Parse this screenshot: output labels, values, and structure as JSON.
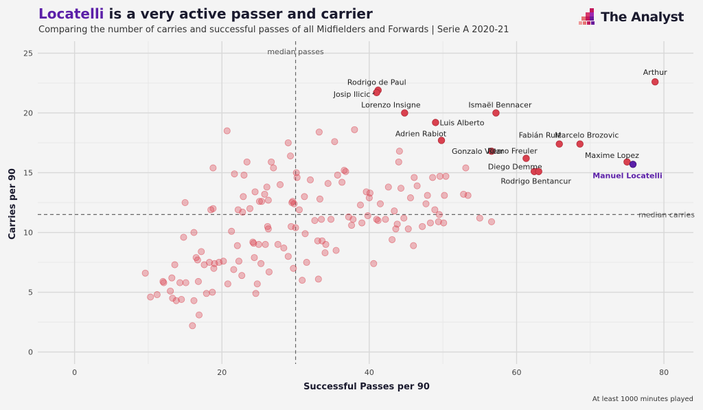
{
  "header": {
    "title_highlight": "Locatelli",
    "title_rest": " is a very active passer and carrier",
    "subtitle": "Comparing the number of carries and successful passes of all Midfielders and Forwards | Serie A 2020-21"
  },
  "brand": {
    "name": "The Analyst"
  },
  "footnote": "At least 1000 minutes played",
  "colors": {
    "points": "#d9414f",
    "highlight": "#5b1fa8",
    "background": "#f4f4f4",
    "grid": "#dcdcdc"
  },
  "chart_data": {
    "type": "scatter",
    "xlabel": "Successful Passes per 90",
    "ylabel": "Carries per 90",
    "xlim": [
      -5,
      84
    ],
    "ylim": [
      -1,
      26
    ],
    "xticks": [
      0,
      20,
      40,
      60,
      80
    ],
    "yticks": [
      0,
      5,
      10,
      15,
      20,
      25
    ],
    "reference_lines": [
      {
        "axis": "x",
        "value": 30,
        "label": "median passes"
      },
      {
        "axis": "y",
        "value": 11.5,
        "label": "median carries"
      }
    ],
    "labeled_points": [
      {
        "name": "Arthur",
        "x": 78.8,
        "y": 22.6
      },
      {
        "name": "Rodrigo de Paul",
        "x": 41.2,
        "y": 21.9
      },
      {
        "name": "Josip Ilicic",
        "x": 41.0,
        "y": 21.7
      },
      {
        "name": "Lorenzo Insigne",
        "x": 44.8,
        "y": 20.0
      },
      {
        "name": "Ismaël Bennacer",
        "x": 57.2,
        "y": 20.0
      },
      {
        "name": "Luis Alberto",
        "x": 49.0,
        "y": 19.2
      },
      {
        "name": "Adrien Rabiot",
        "x": 49.8,
        "y": 17.7
      },
      {
        "name": "Gonzalo Villar",
        "x": 56.6,
        "y": 16.8
      },
      {
        "name": "Fabián Ruiz",
        "x": 65.8,
        "y": 17.4
      },
      {
        "name": "Marcelo Brozovic",
        "x": 68.6,
        "y": 17.4
      },
      {
        "name": "Remo Freuler",
        "x": 61.3,
        "y": 16.2
      },
      {
        "name": "Maxime Lopez",
        "x": 75.0,
        "y": 15.9
      },
      {
        "name": "Diego Demme",
        "x": 62.4,
        "y": 15.1
      },
      {
        "name": "Rodrigo Bentancur",
        "x": 63.0,
        "y": 15.1
      }
    ],
    "highlight_point": {
      "name": "Manuel Locatelli",
      "x": 75.8,
      "y": 15.7
    },
    "background_points": [
      [
        9.6,
        6.6
      ],
      [
        10.3,
        4.6
      ],
      [
        11.2,
        4.8
      ],
      [
        12.0,
        5.9
      ],
      [
        12.1,
        5.8
      ],
      [
        13.0,
        5.1
      ],
      [
        13.2,
        6.2
      ],
      [
        13.3,
        4.5
      ],
      [
        13.6,
        7.3
      ],
      [
        13.8,
        4.3
      ],
      [
        14.3,
        5.8
      ],
      [
        14.5,
        4.4
      ],
      [
        14.8,
        9.6
      ],
      [
        15.1,
        5.8
      ],
      [
        15.0,
        12.5
      ],
      [
        16.0,
        2.2
      ],
      [
        16.2,
        4.3
      ],
      [
        16.2,
        10.0
      ],
      [
        16.5,
        7.9
      ],
      [
        16.8,
        5.9
      ],
      [
        16.9,
        3.1
      ],
      [
        16.7,
        7.7
      ],
      [
        17.2,
        8.4
      ],
      [
        17.6,
        7.3
      ],
      [
        17.9,
        4.9
      ],
      [
        18.3,
        7.5
      ],
      [
        18.5,
        11.9
      ],
      [
        18.8,
        12.0
      ],
      [
        18.7,
        5.0
      ],
      [
        18.8,
        15.4
      ],
      [
        18.9,
        7.0
      ],
      [
        19.0,
        7.4
      ],
      [
        19.6,
        7.5
      ],
      [
        20.2,
        7.6
      ],
      [
        20.7,
        18.5
      ],
      [
        20.8,
        5.7
      ],
      [
        21.3,
        10.1
      ],
      [
        21.6,
        6.9
      ],
      [
        21.7,
        14.9
      ],
      [
        22.1,
        8.9
      ],
      [
        22.2,
        11.9
      ],
      [
        22.3,
        7.6
      ],
      [
        22.7,
        6.4
      ],
      [
        22.8,
        11.7
      ],
      [
        22.9,
        13.0
      ],
      [
        23.0,
        14.8
      ],
      [
        23.4,
        15.9
      ],
      [
        23.8,
        12.0
      ],
      [
        24.2,
        9.2
      ],
      [
        24.3,
        9.1
      ],
      [
        24.4,
        7.9
      ],
      [
        24.5,
        13.4
      ],
      [
        24.6,
        4.9
      ],
      [
        24.8,
        5.7
      ],
      [
        25.0,
        9.0
      ],
      [
        25.1,
        12.6
      ],
      [
        25.3,
        7.4
      ],
      [
        25.4,
        12.6
      ],
      [
        25.8,
        13.2
      ],
      [
        25.9,
        9.0
      ],
      [
        26.1,
        13.8
      ],
      [
        26.2,
        10.5
      ],
      [
        26.3,
        10.3
      ],
      [
        26.3,
        12.7
      ],
      [
        26.4,
        6.7
      ],
      [
        26.7,
        15.9
      ],
      [
        27.0,
        15.4
      ],
      [
        27.6,
        9.0
      ],
      [
        27.9,
        14.0
      ],
      [
        28.4,
        8.7
      ],
      [
        29.0,
        8.0
      ],
      [
        29.0,
        17.5
      ],
      [
        29.3,
        16.4
      ],
      [
        29.4,
        10.5
      ],
      [
        29.5,
        12.5
      ],
      [
        29.6,
        12.6
      ],
      [
        29.7,
        7.0
      ],
      [
        29.8,
        12.4
      ],
      [
        30.0,
        10.4
      ],
      [
        30.1,
        15.0
      ],
      [
        30.2,
        14.6
      ],
      [
        30.5,
        11.9
      ],
      [
        30.9,
        6.0
      ],
      [
        31.2,
        13.0
      ],
      [
        31.3,
        9.9
      ],
      [
        31.5,
        7.5
      ],
      [
        32.0,
        14.4
      ],
      [
        32.6,
        11.0
      ],
      [
        33.0,
        9.3
      ],
      [
        33.1,
        6.1
      ],
      [
        33.2,
        18.4
      ],
      [
        33.3,
        12.8
      ],
      [
        33.5,
        11.1
      ],
      [
        33.6,
        9.3
      ],
      [
        34.0,
        8.3
      ],
      [
        34.1,
        9.0
      ],
      [
        34.4,
        14.1
      ],
      [
        34.8,
        11.1
      ],
      [
        35.3,
        17.6
      ],
      [
        35.5,
        8.5
      ],
      [
        35.7,
        14.8
      ],
      [
        36.3,
        14.2
      ],
      [
        36.6,
        15.2
      ],
      [
        36.8,
        15.1
      ],
      [
        37.2,
        11.3
      ],
      [
        37.6,
        10.6
      ],
      [
        37.8,
        11.1
      ],
      [
        38.0,
        18.6
      ],
      [
        38.8,
        12.3
      ],
      [
        39.0,
        10.8
      ],
      [
        39.6,
        13.4
      ],
      [
        39.8,
        11.4
      ],
      [
        40.0,
        12.9
      ],
      [
        40.1,
        13.3
      ],
      [
        40.6,
        7.4
      ],
      [
        41.0,
        11.1
      ],
      [
        41.2,
        11.0
      ],
      [
        41.5,
        12.4
      ],
      [
        42.2,
        11.1
      ],
      [
        42.6,
        13.8
      ],
      [
        43.1,
        9.4
      ],
      [
        43.4,
        11.8
      ],
      [
        43.6,
        10.3
      ],
      [
        43.8,
        10.7
      ],
      [
        44.0,
        15.9
      ],
      [
        44.1,
        16.8
      ],
      [
        44.3,
        13.7
      ],
      [
        44.7,
        11.2
      ],
      [
        45.3,
        10.3
      ],
      [
        45.6,
        12.9
      ],
      [
        46.0,
        8.9
      ],
      [
        46.1,
        14.6
      ],
      [
        46.5,
        13.9
      ],
      [
        47.2,
        10.5
      ],
      [
        47.7,
        12.4
      ],
      [
        47.9,
        13.1
      ],
      [
        48.3,
        10.8
      ],
      [
        48.6,
        14.6
      ],
      [
        48.9,
        11.9
      ],
      [
        49.4,
        10.9
      ],
      [
        49.5,
        11.5
      ],
      [
        49.6,
        14.7
      ],
      [
        50.1,
        10.8
      ],
      [
        50.2,
        13.1
      ],
      [
        50.4,
        14.7
      ],
      [
        52.8,
        13.2
      ],
      [
        53.1,
        15.4
      ],
      [
        53.4,
        13.1
      ],
      [
        55.0,
        11.2
      ],
      [
        56.6,
        10.9
      ]
    ]
  }
}
